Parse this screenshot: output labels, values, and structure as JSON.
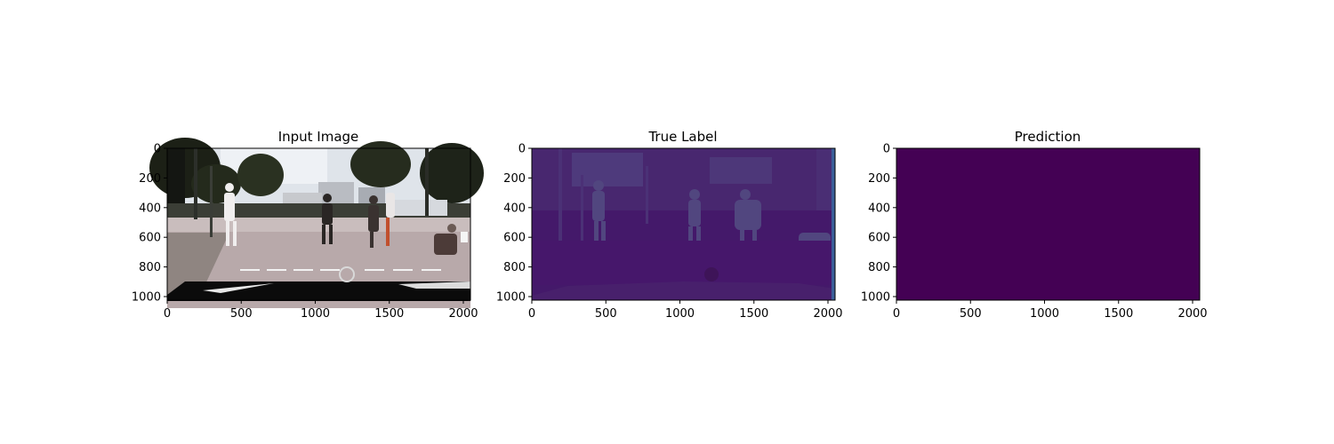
{
  "figure": {
    "background": "#ffffff"
  },
  "chart_data": [
    {
      "type": "heatmap",
      "title": "Input Image",
      "content": "photo",
      "xlim": [
        0,
        2048
      ],
      "ylim": [
        1024,
        0
      ],
      "xticks": [
        0,
        500,
        1000,
        1500,
        2000
      ],
      "yticks": [
        0,
        200,
        400,
        600,
        800,
        1000
      ]
    },
    {
      "type": "heatmap",
      "title": "True Label",
      "content": "segmentation",
      "colormap": "viridis",
      "base_color": "#44196a",
      "region_color": "#4a3478",
      "road_color": "#47166a",
      "xlim": [
        0,
        2048
      ],
      "ylim": [
        1024,
        0
      ],
      "xticks": [
        0,
        500,
        1000,
        1500,
        2000
      ],
      "yticks": [
        0,
        200,
        400,
        600,
        800,
        1000
      ]
    },
    {
      "type": "heatmap",
      "title": "Prediction",
      "content": "uniform",
      "colormap": "viridis",
      "base_color": "#440154",
      "xlim": [
        0,
        2048
      ],
      "ylim": [
        1024,
        0
      ],
      "xticks": [
        0,
        500,
        1000,
        1500,
        2000
      ],
      "yticks": [
        0,
        200,
        400,
        600,
        800,
        1000
      ]
    }
  ]
}
